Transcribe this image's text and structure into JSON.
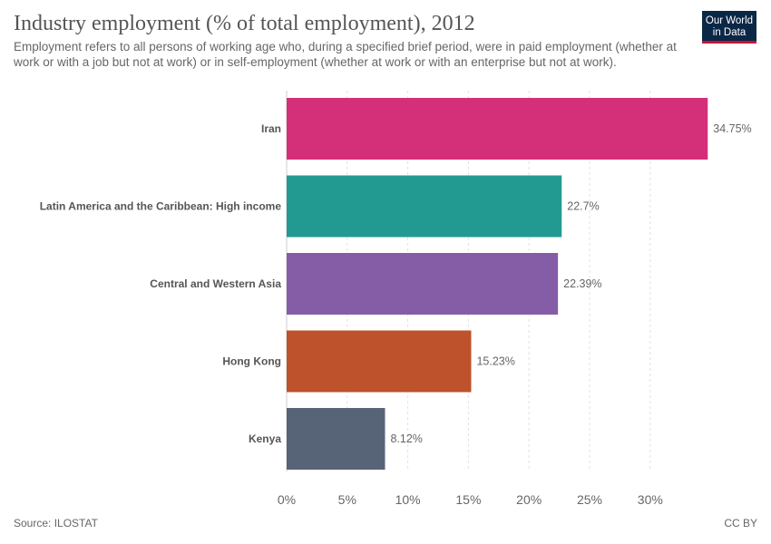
{
  "header": {
    "title": "Industry employment (% of total employment), 2012",
    "subtitle": "Employment refers to all persons of working age who, during a specified brief period, were in paid employment (whether at work or with a job but not at work) or in self-employment (whether at work or with an enterprise but not at work).",
    "logo_line1": "Our World",
    "logo_line2": "in Data"
  },
  "footer": {
    "source": "Source: ILOSTAT",
    "license": "CC BY"
  },
  "chart_data": {
    "type": "bar",
    "orientation": "horizontal",
    "categories": [
      "Iran",
      "Latin America and the Caribbean: High income",
      "Central and Western Asia",
      "Hong Kong",
      "Kenya"
    ],
    "values": [
      34.75,
      22.7,
      22.39,
      15.23,
      8.12
    ],
    "value_labels": [
      "34.75%",
      "22.7%",
      "22.39%",
      "15.23%",
      "8.12%"
    ],
    "colors": [
      "#d42f79",
      "#229a92",
      "#855ca6",
      "#bd522c",
      "#576478"
    ],
    "xlim": [
      0,
      35
    ],
    "xticks": [
      0,
      5,
      10,
      15,
      20,
      25,
      30
    ],
    "xtick_labels": [
      "0%",
      "5%",
      "10%",
      "15%",
      "20%",
      "25%",
      "30%"
    ],
    "grid": true
  }
}
